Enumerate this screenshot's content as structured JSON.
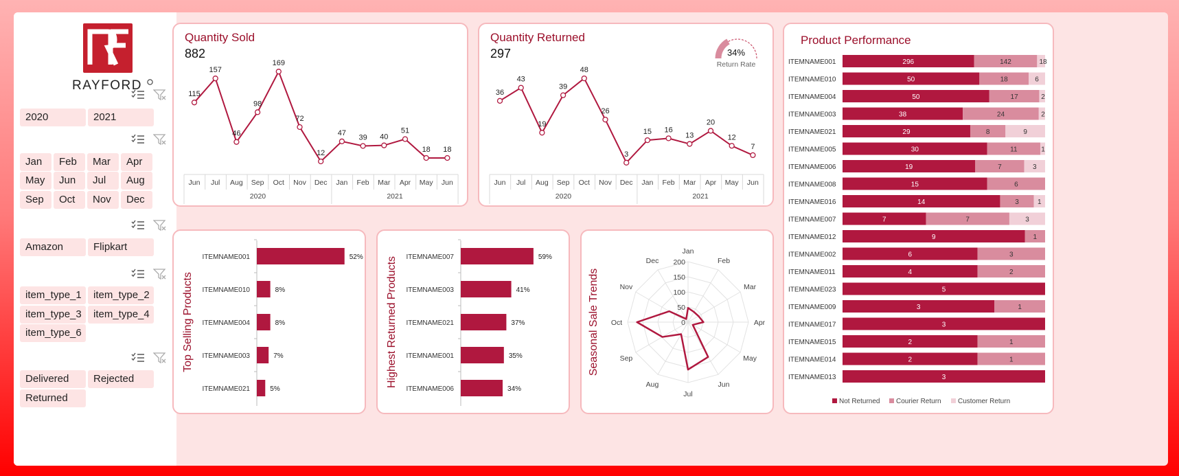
{
  "brand": {
    "name": "RAYFORD",
    "logo_letters": "RF"
  },
  "slicers": {
    "years": [
      "2020",
      "2021"
    ],
    "months": [
      "Jan",
      "Feb",
      "Mar",
      "Apr",
      "May",
      "Jun",
      "Jul",
      "Aug",
      "Sep",
      "Oct",
      "Nov",
      "Dec"
    ],
    "channels": [
      "Amazon",
      "Flipkart"
    ],
    "item_types": [
      "item_type_1",
      "item_type_2",
      "item_type_3",
      "item_type_4",
      "item_type_6"
    ],
    "statuses": [
      "Delivered",
      "Rejected",
      "Returned"
    ]
  },
  "quantity_sold": {
    "title": "Quantity Sold",
    "total": "882",
    "months": [
      "Jun",
      "Jul",
      "Aug",
      "Sep",
      "Oct",
      "Nov",
      "Dec",
      "Jan",
      "Feb",
      "Mar",
      "Apr",
      "May",
      "Jun"
    ],
    "years": [
      {
        "label": "2020",
        "span": 7
      },
      {
        "label": "2021",
        "span": 6
      }
    ],
    "values": [
      115,
      157,
      46,
      98,
      169,
      72,
      12,
      47,
      39,
      40,
      51,
      18,
      18
    ]
  },
  "quantity_returned": {
    "title": "Quantity Returned",
    "total": "297",
    "months": [
      "Jun",
      "Jul",
      "Aug",
      "Sep",
      "Oct",
      "Nov",
      "Dec",
      "Jan",
      "Feb",
      "Mar",
      "Apr",
      "May",
      "Jun"
    ],
    "years": [
      {
        "label": "2020",
        "span": 7
      },
      {
        "label": "2021",
        "span": 6
      }
    ],
    "values": [
      36,
      43,
      19,
      39,
      48,
      26,
      3,
      15,
      16,
      13,
      20,
      12,
      7
    ],
    "return_rate": {
      "label": "Return Rate",
      "value": "34%",
      "fraction": 0.34
    }
  },
  "top_selling": {
    "title": "Top Selling Products",
    "items": [
      "ITEMNAME001",
      "ITEMNAME010",
      "ITEMNAME004",
      "ITEMNAME003",
      "ITEMNAME021"
    ],
    "values": [
      52,
      8,
      8,
      7,
      5
    ],
    "labels": [
      "52%",
      "8%",
      "8%",
      "7%",
      "5%"
    ]
  },
  "highest_returned": {
    "title": "Highest Returned Products",
    "items": [
      "ITEMNAME007",
      "ITEMNAME003",
      "ITEMNAME021",
      "ITEMNAME001",
      "ITEMNAME006"
    ],
    "values": [
      59,
      41,
      37,
      35,
      34
    ],
    "labels": [
      "59%",
      "41%",
      "37%",
      "35%",
      "34%"
    ]
  },
  "seasonal": {
    "title": "Seasonal Sale Trends",
    "months": [
      "Jan",
      "Feb",
      "Mar",
      "Apr",
      "May",
      "Jun",
      "Jul",
      "Aug",
      "Sep",
      "Oct",
      "Nov",
      "Dec"
    ],
    "values": [
      47,
      39,
      40,
      51,
      18,
      133,
      157,
      46,
      98,
      169,
      72,
      12
    ],
    "ticks": [
      "0",
      "50",
      "100",
      "150",
      "200"
    ],
    "max": 200
  },
  "product_performance": {
    "title": "Product Performance",
    "legend": [
      "Not Returned",
      "Courier Return",
      "Customer Return"
    ],
    "colors": [
      "#b0183f",
      "#d98c9e",
      "#f1d0d8"
    ],
    "items": [
      {
        "name": "ITEMNAME001",
        "values": [
          296,
          142,
          18
        ]
      },
      {
        "name": "ITEMNAME010",
        "values": [
          50,
          18,
          6
        ]
      },
      {
        "name": "ITEMNAME004",
        "values": [
          50,
          17,
          2
        ]
      },
      {
        "name": "ITEMNAME003",
        "values": [
          38,
          24,
          2
        ]
      },
      {
        "name": "ITEMNAME021",
        "values": [
          29,
          8,
          9
        ]
      },
      {
        "name": "ITEMNAME005",
        "values": [
          30,
          11,
          1
        ]
      },
      {
        "name": "ITEMNAME006",
        "values": [
          19,
          7,
          3
        ]
      },
      {
        "name": "ITEMNAME008",
        "values": [
          15,
          6,
          0
        ]
      },
      {
        "name": "ITEMNAME016",
        "values": [
          14,
          3,
          1
        ]
      },
      {
        "name": "ITEMNAME007",
        "values": [
          7,
          7,
          3
        ]
      },
      {
        "name": "ITEMNAME012",
        "values": [
          9,
          1,
          0
        ]
      },
      {
        "name": "ITEMNAME002",
        "values": [
          6,
          3,
          0
        ]
      },
      {
        "name": "ITEMNAME011",
        "values": [
          4,
          2,
          0
        ]
      },
      {
        "name": "ITEMNAME023",
        "values": [
          5,
          0,
          0
        ]
      },
      {
        "name": "ITEMNAME009",
        "values": [
          3,
          1,
          0
        ]
      },
      {
        "name": "ITEMNAME017",
        "values": [
          3,
          0,
          0
        ]
      },
      {
        "name": "ITEMNAME015",
        "values": [
          2,
          1,
          0
        ]
      },
      {
        "name": "ITEMNAME014",
        "values": [
          2,
          1,
          0
        ]
      },
      {
        "name": "ITEMNAME013",
        "values": [
          3,
          0,
          0
        ]
      }
    ]
  },
  "theme": {
    "accent": "#b0183f",
    "title_color": "#9b0f2a"
  }
}
